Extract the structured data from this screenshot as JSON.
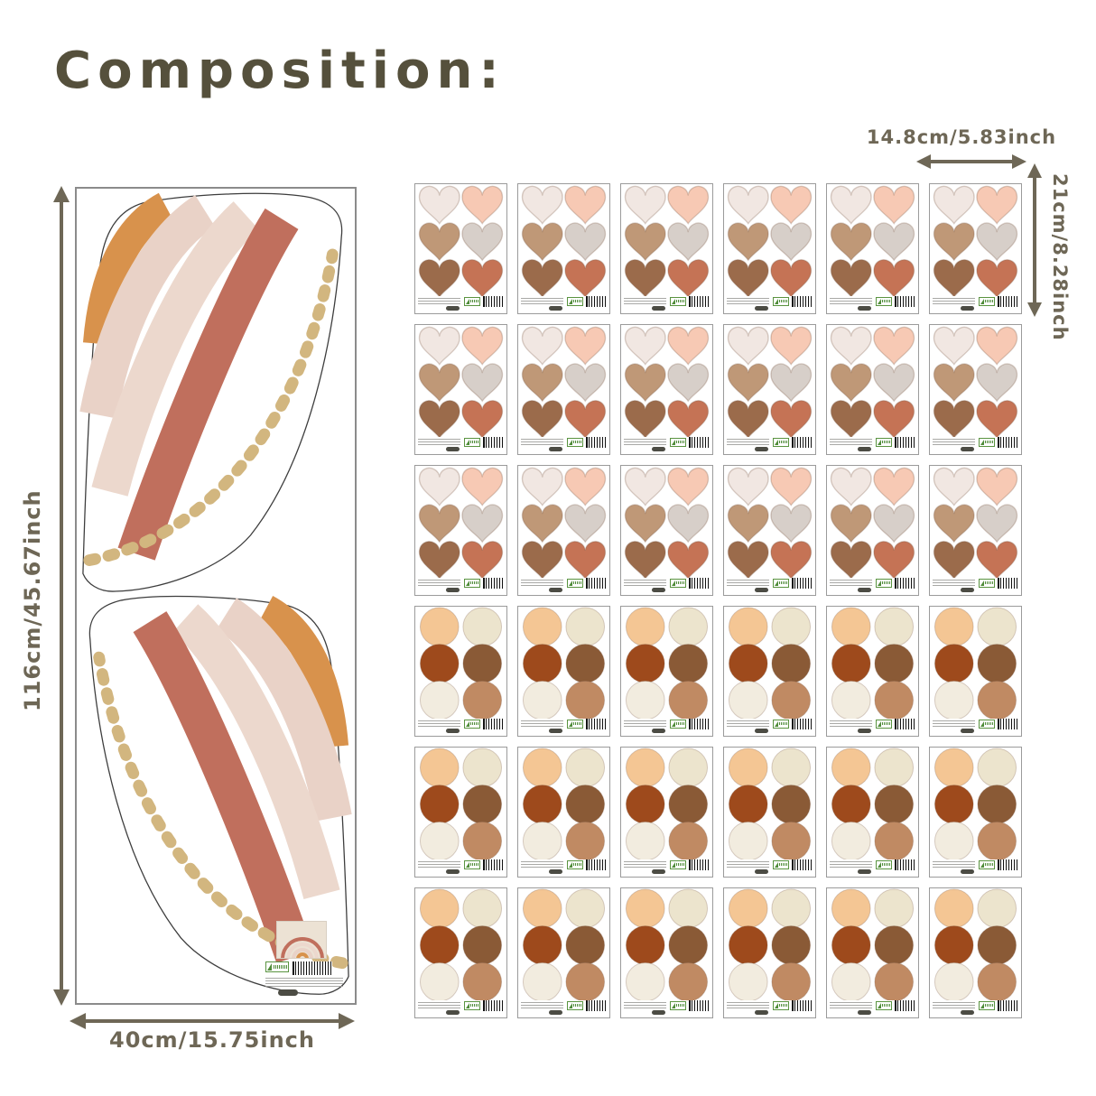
{
  "title": "Composition:",
  "dimensions": {
    "panel_height_label": "116cm/45.67inch",
    "panel_width_label": "40cm/15.75inch",
    "sheet_width_label": "14.8cm/5.83inch",
    "sheet_height_label": "21cm/8.28inch"
  },
  "colors": {
    "title_text": "#55503c",
    "dimension_text": "#6e6756",
    "arrow": "#6e6756",
    "panel_border": "#8b8b8b",
    "sheet_border": "#9b9b9b",
    "sticker_outline": "rgba(130,95,75,0.30)",
    "rainbow_arcs": [
      "#d8924c",
      "#e9d2c7",
      "#ecd8cd",
      "#c06f5d"
    ],
    "rainbow_dash": "#d2b67f",
    "heart_stickers": [
      "#f1e7e2",
      "#f7c9b4",
      "#bf9877",
      "#d7cfc9",
      "#9b6b4b",
      "#c57355"
    ],
    "circle_stickers": [
      "#f4c694",
      "#ece4cd",
      "#9e4a1c",
      "#8a5a36",
      "#f2ecdf",
      "#c08a63"
    ]
  },
  "grid": {
    "columns": 6,
    "heart_sheet_rows": 3,
    "circle_sheet_rows": 3,
    "total_sheets": 36,
    "stickers_per_sheet": 6
  }
}
